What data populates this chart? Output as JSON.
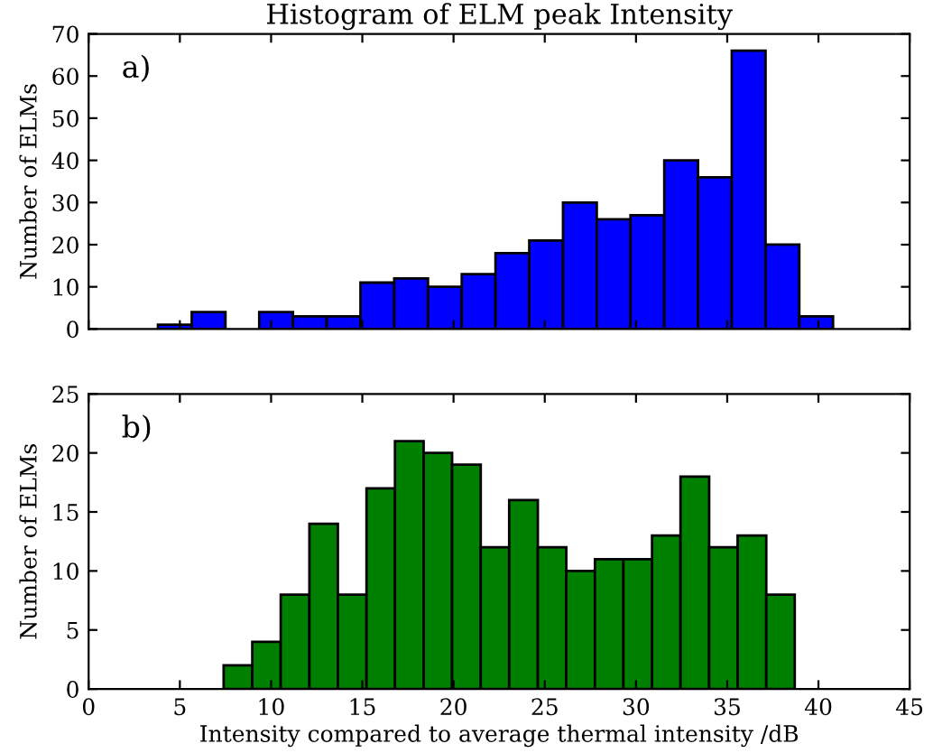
{
  "chart_data": [
    {
      "type": "histogram",
      "title": "Histogram of ELM peak Intensity",
      "ylabel": "Number of ELMs",
      "annotations": [
        "a)"
      ],
      "color": "#0000ff",
      "bins": [
        3.8,
        5.65,
        7.5,
        9.35,
        11.2,
        13.05,
        14.9,
        16.75,
        18.6,
        20.45,
        22.3,
        24.15,
        26.0,
        27.85,
        29.7,
        31.55,
        33.4,
        35.25,
        37.1,
        38.95,
        40.8
      ],
      "values": [
        1,
        4,
        0,
        4,
        3,
        3,
        11,
        12,
        10,
        13,
        18,
        21,
        30,
        26,
        27,
        40,
        36,
        66,
        20,
        3
      ],
      "xlim": [
        0,
        45
      ],
      "xticks": [
        {
          "value": 0,
          "label": null
        },
        {
          "value": 5,
          "label": null
        },
        {
          "value": 10,
          "label": null
        },
        {
          "value": 15,
          "label": null
        },
        {
          "value": 20,
          "label": null
        },
        {
          "value": 25,
          "label": null
        },
        {
          "value": 30,
          "label": null
        },
        {
          "value": 35,
          "label": null
        },
        {
          "value": 40,
          "label": null
        },
        {
          "value": 45,
          "label": null
        }
      ],
      "ylim": [
        0,
        70
      ],
      "yticks": [
        0,
        10,
        20,
        30,
        40,
        50,
        60,
        70
      ],
      "tick_labels": "y"
    },
    {
      "type": "histogram",
      "xlabel": "Intensity compared to average thermal intensity /dB",
      "ylabel": "Number of ELMs",
      "annotations": [
        "b)"
      ],
      "color": "#008000",
      "bins": [
        7.4,
        8.97,
        10.53,
        12.1,
        13.66,
        15.23,
        16.79,
        18.36,
        19.92,
        21.49,
        23.05,
        24.62,
        26.18,
        27.75,
        29.31,
        30.88,
        32.44,
        34.01,
        35.57,
        37.14,
        38.7
      ],
      "values": [
        2,
        4,
        8,
        14,
        8,
        17,
        21,
        20,
        19,
        12,
        16,
        12,
        10,
        11,
        11,
        13,
        18,
        12,
        13,
        8
      ],
      "xlim": [
        0,
        45
      ],
      "xticks": [
        0,
        5,
        10,
        15,
        20,
        25,
        30,
        35,
        40,
        45
      ],
      "ylim": [
        0,
        25
      ],
      "yticks": [
        0,
        5,
        10,
        15,
        20,
        25
      ]
    }
  ]
}
